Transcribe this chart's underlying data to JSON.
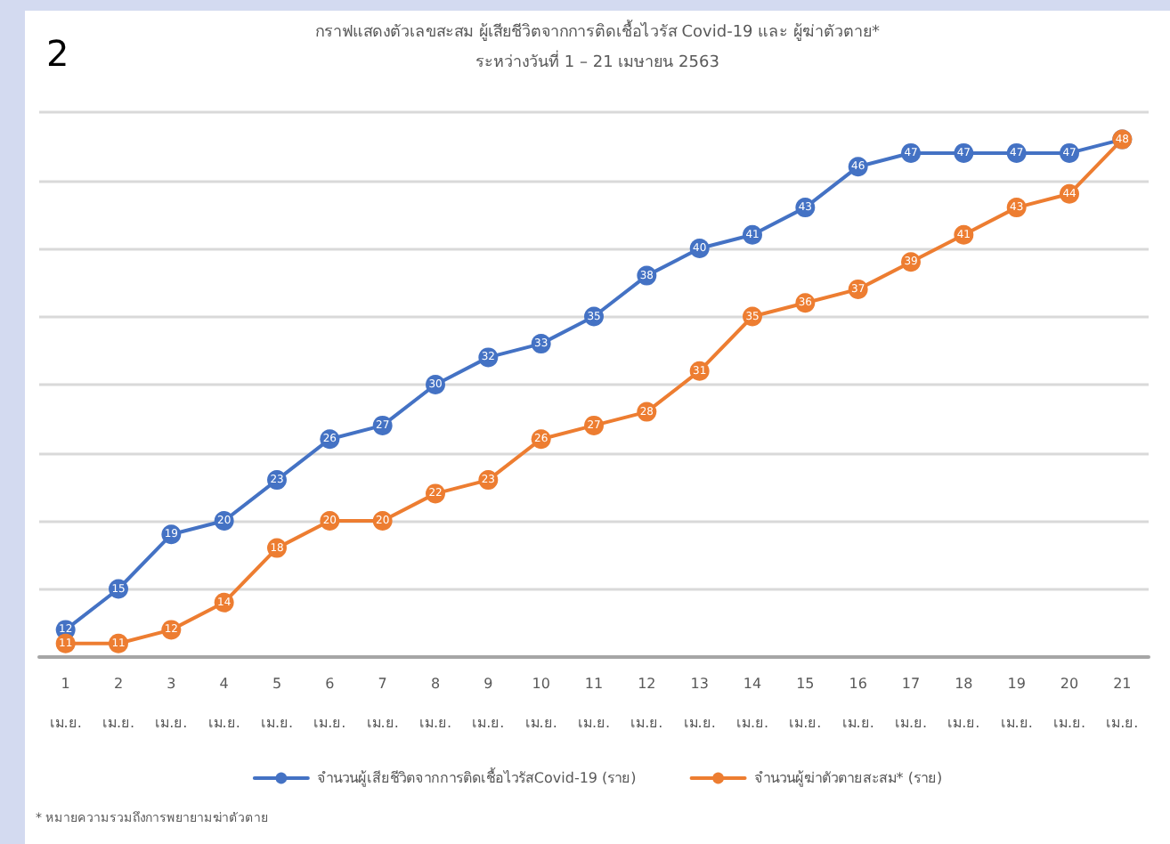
{
  "chart_data": {
    "type": "line",
    "title": "กราฟแสดงตัวเลขสะสม ผู้เสียชีวิตจากการติดเชื้อไวรัส Covid-19 และ ผู้ฆ่าตัวตาย*",
    "subtitle": "ระหว่างวันที่ 1 – 21 เมษายน 2563",
    "annotations": [
      "2",
      "* หมายความรวมถึงการพยายามฆ่าตัวตาย"
    ],
    "categories": [
      "1\nเม.ย.",
      "2\nเม.ย.",
      "3\nเม.ย.",
      "4\nเม.ย.",
      "5\nเม.ย.",
      "6\nเม.ย.",
      "7\nเม.ย.",
      "8\nเม.ย.",
      "9\nเม.ย.",
      "10\nเม.ย.",
      "11\nเม.ย.",
      "12\nเม.ย.",
      "13\nเม.ย.",
      "14\nเม.ย.",
      "15\nเม.ย.",
      "16\nเม.ย.",
      "17\nเม.ย.",
      "18\nเม.ย.",
      "19\nเม.ย.",
      "20\nเม.ย.",
      "21\nเม.ย."
    ],
    "series": [
      {
        "name": "จำนวนผู้เสียชีวิตจากการติดเชื้อไวรัสCovid-19 (ราย)",
        "color": "#4472c4",
        "values": [
          12,
          15,
          19,
          20,
          23,
          26,
          27,
          30,
          32,
          33,
          35,
          38,
          40,
          41,
          43,
          46,
          47,
          47,
          47,
          47,
          48
        ],
        "value_labels": [
          "12",
          "15",
          "19",
          "20",
          "23",
          "26",
          "27",
          "30",
          "32",
          "33",
          "35",
          "38",
          "40",
          "41",
          "43",
          "46",
          "47",
          "47",
          "47",
          "47",
          null
        ]
      },
      {
        "name": "จำนวนผู้ฆ่าตัวตายสะสม* (ราย)",
        "color": "#ed7d31",
        "values": [
          11,
          11,
          12,
          14,
          18,
          20,
          20,
          22,
          23,
          26,
          27,
          28,
          31,
          35,
          36,
          37,
          39,
          41,
          43,
          44,
          48
        ],
        "value_labels": [
          "11",
          "11",
          "12",
          "14",
          "18",
          "20",
          "20",
          "22",
          "23",
          "26",
          "27",
          "28",
          "31",
          "35",
          "36",
          "37",
          "39",
          "41",
          "43",
          "44",
          "48"
        ]
      }
    ],
    "ylim": [
      10,
      50
    ],
    "yticks": [
      {
        "value": 10,
        "label": null
      },
      {
        "value": 15,
        "label": null
      },
      {
        "value": 20,
        "label": null
      },
      {
        "value": 25,
        "label": null
      },
      {
        "value": 30,
        "label": null
      },
      {
        "value": 35,
        "label": null
      },
      {
        "value": 40,
        "label": null
      },
      {
        "value": 45,
        "label": null
      },
      {
        "value": 50,
        "label": null
      }
    ],
    "tick_labels": "x",
    "grid": "y",
    "legend": "bottom",
    "marker": "circle",
    "line_style": "solid"
  }
}
